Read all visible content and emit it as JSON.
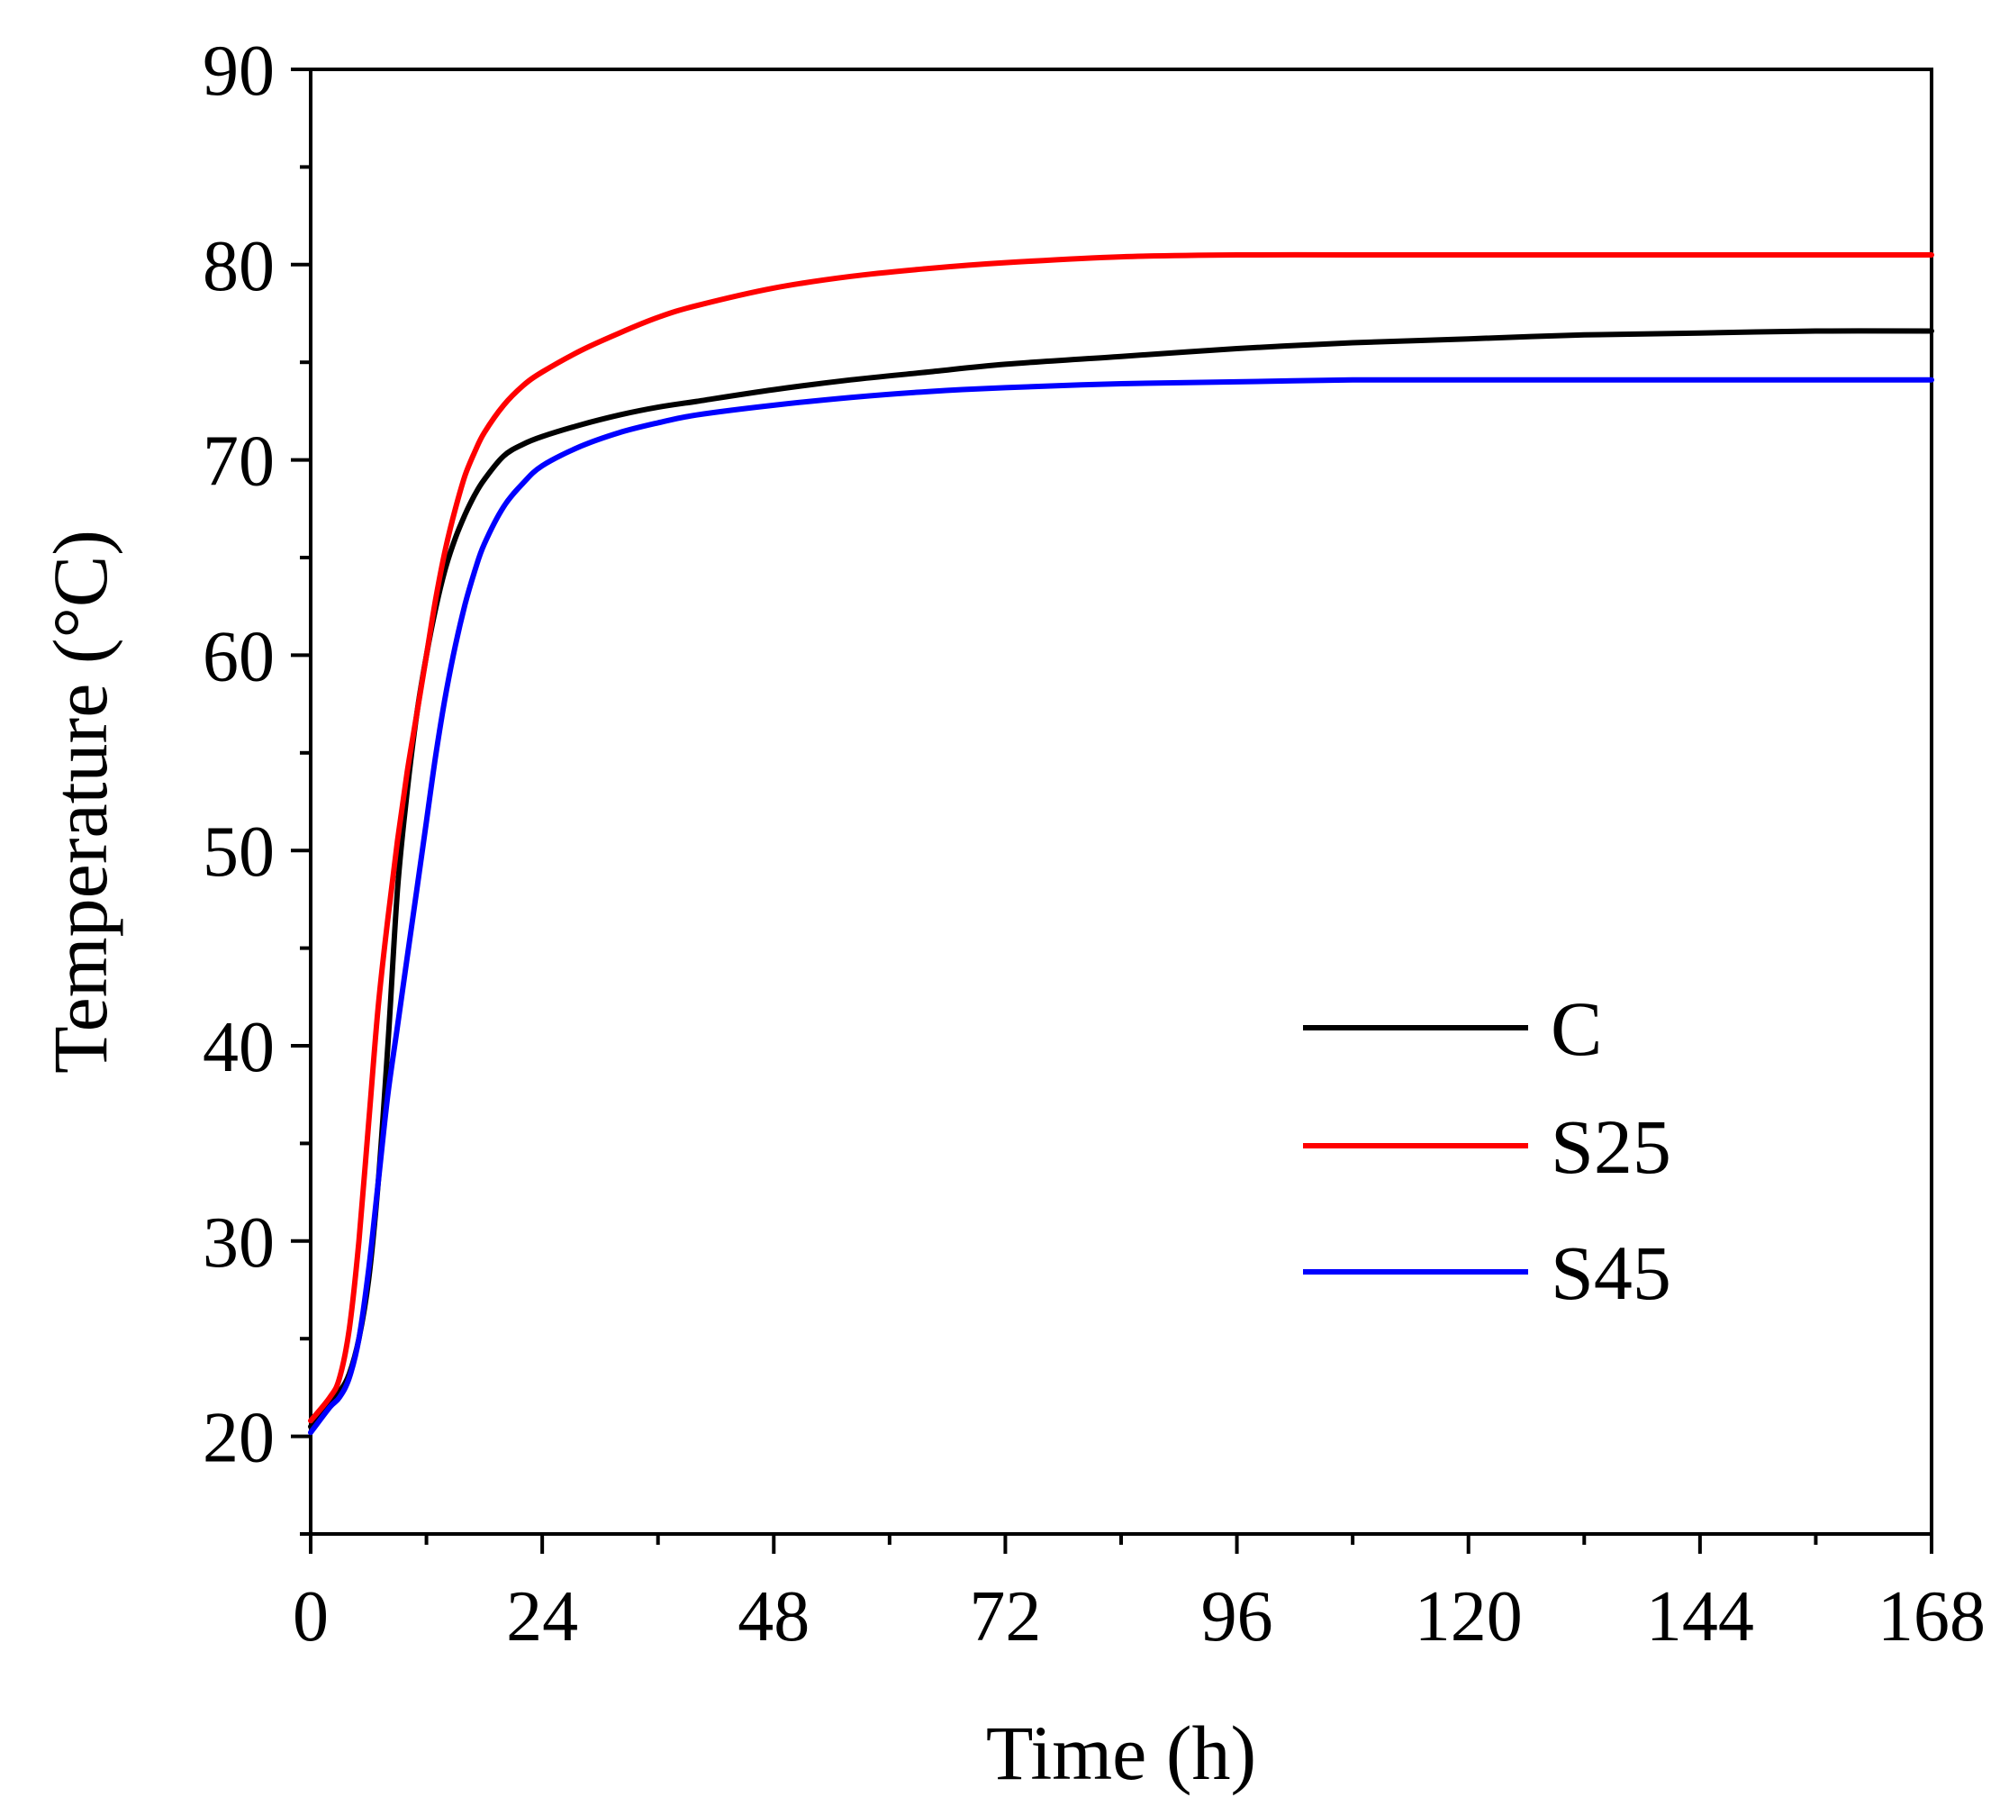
{
  "chart_data": {
    "type": "line",
    "title": "",
    "xlabel": "Time (h)",
    "ylabel": "Temperature (°C)",
    "xlim": [
      0,
      168
    ],
    "ylim": [
      15,
      90
    ],
    "xticks": [
      0,
      24,
      48,
      72,
      96,
      120,
      144,
      168
    ],
    "xtick_labels": [
      "0",
      "24",
      "48",
      "72",
      "96",
      "120",
      "144",
      "168"
    ],
    "yticks": [
      20,
      30,
      40,
      50,
      60,
      70,
      80,
      90
    ],
    "ytick_labels": [
      "20",
      "30",
      "40",
      "50",
      "60",
      "70",
      "80",
      "90"
    ],
    "grid": false,
    "legend_position": "bottom-right",
    "x": [
      0,
      2,
      3,
      4,
      5,
      6,
      7,
      8,
      9,
      10,
      11,
      12,
      13,
      14,
      15,
      16,
      17,
      18,
      20,
      22,
      24,
      28,
      32,
      36,
      40,
      48,
      56,
      64,
      72,
      84,
      96,
      108,
      120,
      132,
      144,
      156,
      168
    ],
    "series": [
      {
        "name": "C",
        "color": "#000000",
        "values": [
          20.5,
          21.8,
          22.3,
          23.2,
          25.0,
          28.0,
          33.0,
          40.0,
          48.0,
          53.0,
          57.0,
          60.0,
          62.5,
          64.5,
          66.0,
          67.2,
          68.2,
          69.0,
          70.2,
          70.8,
          71.2,
          71.8,
          72.3,
          72.7,
          73.0,
          73.6,
          74.1,
          74.5,
          74.9,
          75.3,
          75.7,
          76.0,
          76.2,
          76.4,
          76.5,
          76.6,
          76.6
        ]
      },
      {
        "name": "S25",
        "color": "#ff0000",
        "values": [
          20.8,
          22.0,
          23.0,
          25.5,
          30.0,
          36.0,
          42.0,
          46.5,
          50.5,
          54.0,
          57.0,
          60.0,
          63.0,
          65.5,
          67.5,
          69.2,
          70.4,
          71.4,
          72.8,
          73.8,
          74.5,
          75.6,
          76.5,
          77.3,
          77.9,
          78.8,
          79.4,
          79.8,
          80.1,
          80.4,
          80.5,
          80.5,
          80.5,
          80.5,
          80.5,
          80.5,
          80.5
        ]
      },
      {
        "name": "S45",
        "color": "#0000ff",
        "values": [
          20.2,
          21.5,
          22.0,
          23.0,
          25.0,
          28.5,
          33.0,
          37.5,
          41.0,
          44.5,
          48.0,
          51.5,
          55.0,
          58.0,
          60.5,
          62.6,
          64.3,
          65.7,
          67.6,
          68.8,
          69.7,
          70.7,
          71.4,
          71.9,
          72.3,
          72.8,
          73.2,
          73.5,
          73.7,
          73.9,
          74.0,
          74.1,
          74.1,
          74.1,
          74.1,
          74.1,
          74.1
        ]
      }
    ]
  }
}
